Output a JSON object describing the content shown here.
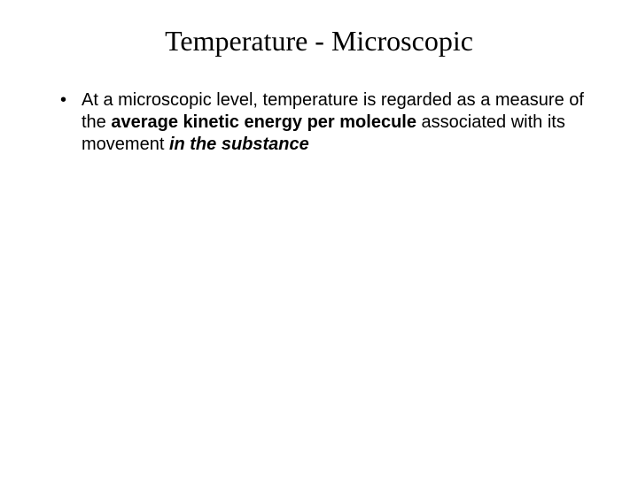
{
  "slide": {
    "title": "Temperature - Microscopic",
    "title_font": "Times New Roman",
    "title_fontsize": 32,
    "body_font": "Arial",
    "body_fontsize": 20,
    "background_color": "#ffffff",
    "text_color": "#000000",
    "bullets": [
      {
        "runs": [
          {
            "text": "At a microscopic level, temperature is regarded as a measure of the ",
            "style": "normal"
          },
          {
            "text": "average kinetic energy per molecule",
            "style": "bold"
          },
          {
            "text": " associated with its movement ",
            "style": "normal"
          },
          {
            "text": "in the substance",
            "style": "bolditalic"
          }
        ]
      }
    ]
  }
}
